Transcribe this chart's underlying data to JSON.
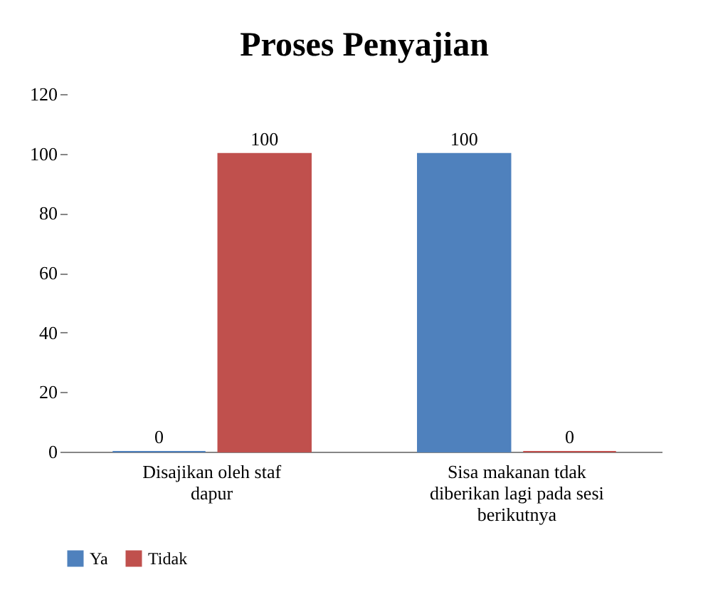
{
  "chart_data": {
    "type": "bar",
    "title": "Proses Penyajian",
    "categories": [
      "Disajikan oleh staf dapur",
      "Sisa makanan tdak diberikan lagi pada sesi berikutnya"
    ],
    "series": [
      {
        "name": "Ya",
        "color": "#4f81bd",
        "values": [
          0,
          100
        ]
      },
      {
        "name": "Tidak",
        "color": "#c0504d",
        "values": [
          100,
          0
        ]
      }
    ],
    "ylim": [
      0,
      120
    ],
    "yticks": [
      0,
      20,
      40,
      60,
      80,
      100,
      120
    ],
    "grid": false,
    "legend": "bottom",
    "data_labels": true
  }
}
